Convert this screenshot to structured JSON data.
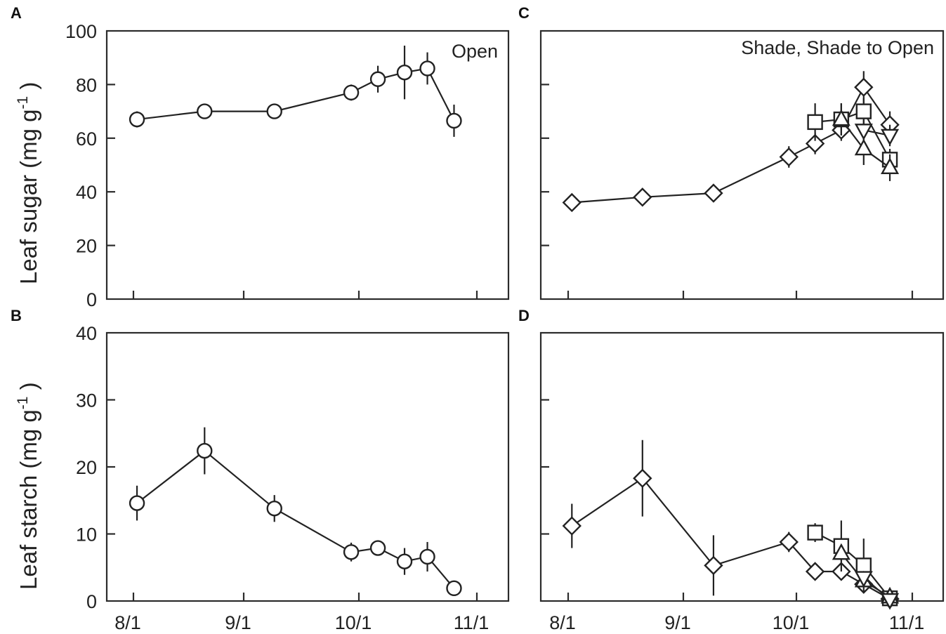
{
  "figure": {
    "panels": [
      {
        "id": "A",
        "letter": "A",
        "annotation": "Open"
      },
      {
        "id": "B",
        "letter": "B",
        "annotation": ""
      },
      {
        "id": "C",
        "letter": "C",
        "annotation": "Shade, Shade to Open"
      },
      {
        "id": "D",
        "letter": "D",
        "annotation": ""
      }
    ],
    "ylabel_sugar": "Leaf sugar (mg g",
    "ylabel_starch": "Leaf starch (mg g",
    "ylabel_superscript": "-1",
    "ylabel_close": ")",
    "x_ticks": [
      "8/1",
      "9/1",
      "10/1",
      "11/1"
    ],
    "sugar_ticks": [
      "0",
      "20",
      "40",
      "60",
      "80",
      "100"
    ],
    "starch_ticks": [
      "0",
      "10",
      "20",
      "30",
      "40"
    ]
  },
  "chart_data": [
    {
      "panel": "A",
      "type": "line",
      "title": "Open",
      "xlabel": "",
      "ylabel": "Leaf sugar (mg g-1)",
      "ylim": [
        0,
        100
      ],
      "x_tick_labels": [
        "8/1",
        "9/1",
        "10/1",
        "11/1"
      ],
      "y_tick_labels": [
        "0",
        "20",
        "40",
        "60",
        "80",
        "100"
      ],
      "grid": false,
      "series": [
        {
          "name": "Open",
          "marker": "circle",
          "x": [
            "8/2",
            "8/21",
            "9/9",
            "9/29",
            "10/6",
            "10/13",
            "10/19",
            "10/26"
          ],
          "values": [
            67,
            70,
            70,
            77,
            82,
            84.5,
            86,
            66.5
          ],
          "errors": [
            3,
            2,
            2,
            3,
            5,
            10,
            6,
            6
          ]
        }
      ]
    },
    {
      "panel": "B",
      "type": "line",
      "title": "",
      "xlabel": "",
      "ylabel": "Leaf starch (mg g-1)",
      "ylim": [
        0,
        40
      ],
      "x_tick_labels": [
        "8/1",
        "9/1",
        "10/1",
        "11/1"
      ],
      "y_tick_labels": [
        "0",
        "10",
        "20",
        "30",
        "40"
      ],
      "grid": false,
      "series": [
        {
          "name": "Open",
          "marker": "circle",
          "x": [
            "8/2",
            "8/21",
            "9/9",
            "9/29",
            "10/6",
            "10/13",
            "10/19",
            "10/26"
          ],
          "values": [
            14.6,
            22.4,
            13.8,
            7.3,
            7.9,
            5.9,
            6.6,
            1.9
          ],
          "errors": [
            2.6,
            3.5,
            2.0,
            1.4,
            0.6,
            2.0,
            2.2,
            0.4
          ]
        }
      ]
    },
    {
      "panel": "C",
      "type": "line",
      "title": "Shade, Shade to Open",
      "xlabel": "",
      "ylabel": "Leaf sugar (mg g-1)",
      "ylim": [
        0,
        100
      ],
      "x_tick_labels": [
        "8/1",
        "9/1",
        "10/1",
        "11/1"
      ],
      "grid": false,
      "series": [
        {
          "name": "Shade",
          "marker": "diamond",
          "x": [
            "8/2",
            "8/21",
            "9/9",
            "9/29",
            "10/6",
            "10/13",
            "10/19",
            "10/26"
          ],
          "values": [
            36,
            38,
            39.5,
            53,
            58,
            63,
            79,
            65
          ],
          "errors": [
            1,
            1,
            3,
            4,
            4,
            4,
            6,
            5
          ]
        },
        {
          "name": "Shade to Open 1",
          "marker": "square",
          "x": [
            "10/6",
            "10/13",
            "10/19",
            "10/26"
          ],
          "values": [
            66,
            67,
            70,
            52
          ],
          "errors": [
            7,
            6,
            5,
            4
          ]
        },
        {
          "name": "Shade to Open 2",
          "marker": "triangle-up",
          "x": [
            "10/13",
            "10/19",
            "10/26"
          ],
          "values": [
            67,
            56,
            49
          ],
          "errors": [
            6,
            6,
            5
          ]
        },
        {
          "name": "Shade to Open 3",
          "marker": "triangle-down",
          "x": [
            "10/19",
            "10/26"
          ],
          "values": [
            63,
            61
          ],
          "errors": [
            4,
            4
          ]
        }
      ]
    },
    {
      "panel": "D",
      "type": "line",
      "title": "",
      "xlabel": "",
      "ylabel": "Leaf starch (mg g-1)",
      "ylim": [
        0,
        40
      ],
      "x_tick_labels": [
        "8/1",
        "9/1",
        "10/1",
        "11/1"
      ],
      "grid": false,
      "series": [
        {
          "name": "Shade",
          "marker": "diamond",
          "x": [
            "8/2",
            "8/21",
            "9/9",
            "9/29",
            "10/6",
            "10/13",
            "10/19",
            "10/26"
          ],
          "values": [
            11.2,
            18.3,
            5.3,
            8.8,
            4.4,
            4.4,
            2.5,
            0.3
          ],
          "errors": [
            3.3,
            5.7,
            4.5,
            1.5,
            0.5,
            0.8,
            0.9,
            0.3
          ]
        },
        {
          "name": "Shade to Open 1",
          "marker": "square",
          "x": [
            "10/6",
            "10/13",
            "10/19",
            "10/26"
          ],
          "values": [
            10.2,
            8.2,
            5.3,
            0.4
          ],
          "errors": [
            1.4,
            3.8,
            4.0,
            0.3
          ]
        },
        {
          "name": "Shade to Open 2",
          "marker": "triangle-up",
          "x": [
            "10/13",
            "10/19",
            "10/26"
          ],
          "values": [
            7.1,
            3.0,
            0.6
          ],
          "errors": [
            1.0,
            0.8,
            0.3
          ]
        },
        {
          "name": "Shade to Open 3",
          "marker": "triangle-down",
          "x": [
            "10/19",
            "10/26"
          ],
          "values": [
            3.5,
            0.2
          ],
          "errors": [
            0.8,
            0.2
          ]
        }
      ]
    }
  ]
}
